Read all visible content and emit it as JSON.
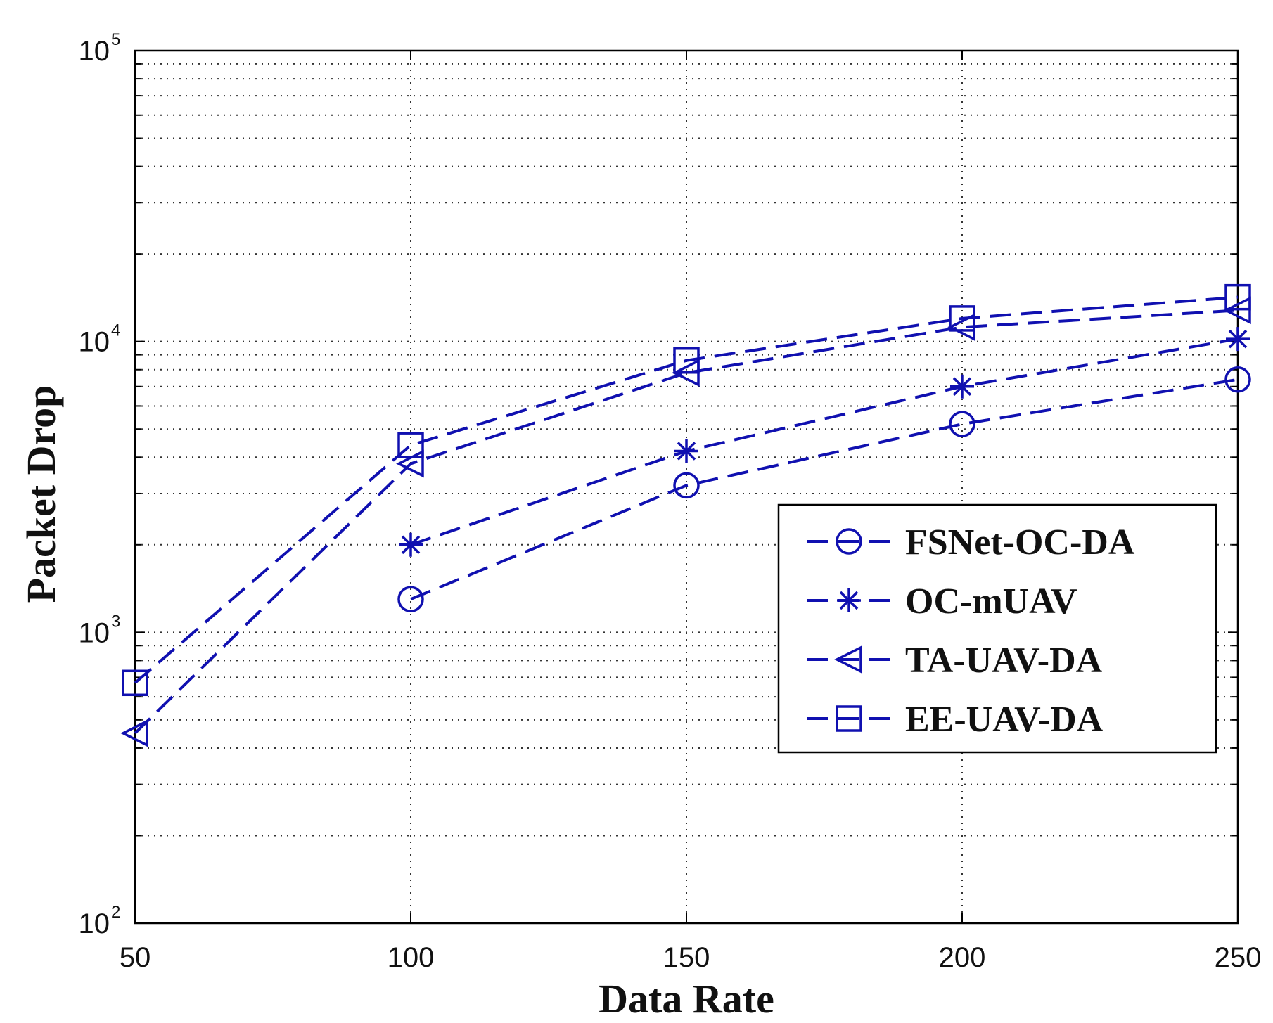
{
  "chart_data": {
    "type": "line",
    "title": "",
    "xlabel": "Data Rate",
    "ylabel": "Packet Drop",
    "xscale": "linear",
    "yscale": "log",
    "xlim": [
      50,
      250
    ],
    "ylim": [
      100,
      100000
    ],
    "xticks": [
      50,
      100,
      150,
      200,
      250
    ],
    "xtick_labels": [
      "50",
      "100",
      "150",
      "200",
      "250"
    ],
    "yticks": [
      100,
      1000,
      10000,
      100000
    ],
    "ytick_labels": [
      {
        "base": "10",
        "exp": "2"
      },
      {
        "base": "10",
        "exp": "3"
      },
      {
        "base": "10",
        "exp": "4"
      },
      {
        "base": "10",
        "exp": "5"
      }
    ],
    "grid": true,
    "legend_position": "lower-right",
    "colors": {
      "series": "#1010b0",
      "axis": "#000000",
      "grid": "#333333"
    },
    "series": [
      {
        "name": "FSNet-OC-DA",
        "marker": "circle",
        "x": [
          100,
          150,
          200,
          250
        ],
        "values": [
          1300,
          3200,
          5200,
          7400
        ]
      },
      {
        "name": "OC-mUAV",
        "marker": "star",
        "x": [
          100,
          150,
          200,
          250
        ],
        "values": [
          2000,
          4200,
          7000,
          10200
        ]
      },
      {
        "name": "TA-UAV-DA",
        "marker": "triangle-left",
        "x": [
          50,
          100,
          150,
          200,
          250
        ],
        "values": [
          450,
          3800,
          7800,
          11200,
          12800
        ]
      },
      {
        "name": "EE-UAV-DA",
        "marker": "square",
        "x": [
          50,
          100,
          150,
          200,
          250
        ],
        "values": [
          670,
          4400,
          8600,
          12000,
          14200
        ]
      }
    ]
  }
}
